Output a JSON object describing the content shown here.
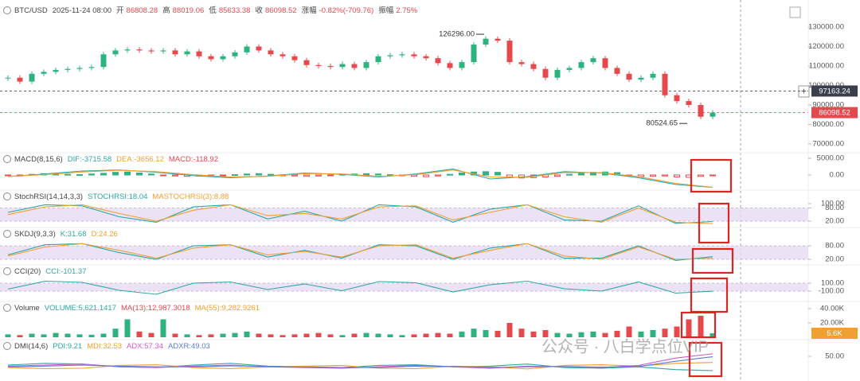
{
  "header": {
    "symbol": "BTC/USD",
    "datetime": "2025-11-24 08:00",
    "items": [
      {
        "label": "开",
        "value": "86808.28"
      },
      {
        "label": "高",
        "value": "88019.06"
      },
      {
        "label": "低",
        "value": "85633.38"
      },
      {
        "label": "收",
        "value": "86098.52"
      },
      {
        "label": "涨幅",
        "value": "-0.82%(-709.76)"
      },
      {
        "label": "振幅",
        "value": "2.75%"
      }
    ]
  },
  "watermark": "公众号 · 八白学点位VIP",
  "chart_data": [
    {
      "type": "candlestick",
      "up_color": "#2db37f",
      "down_color": "#e5484d",
      "ylim": [
        65000,
        140000
      ],
      "yticks": [
        {
          "value": 130000,
          "label": "130000.00"
        },
        {
          "value": 120000,
          "label": "120000.00"
        },
        {
          "value": 110000,
          "label": "110000.00"
        },
        {
          "value": 100000,
          "label": "100000.00"
        },
        {
          "value": 90000,
          "label": "90000.00"
        },
        {
          "value": 80000,
          "label": "80000.00"
        },
        {
          "value": 70000,
          "label": "70000.00"
        }
      ],
      "values": [
        104000,
        102000,
        106000,
        107000,
        108000,
        108500,
        109000,
        109500,
        116000,
        118000,
        118500,
        118000,
        117500,
        118000,
        116000,
        117500,
        115000,
        113500,
        115000,
        117000,
        120000,
        118000,
        116000,
        115000,
        113000,
        110500,
        110000,
        109500,
        111000,
        109000,
        112000,
        115000,
        115500,
        116000,
        115000,
        114000,
        111500,
        109000,
        112000,
        121000,
        124000,
        123000,
        112000,
        111000,
        108500,
        104000,
        108000,
        109000,
        112000,
        114000,
        109000,
        106000,
        103000,
        104000,
        106000,
        95000,
        92000,
        90000,
        84000,
        86098.52
      ],
      "price_lines": [
        {
          "value": 97163.24,
          "color": "#3a3f4b"
        },
        {
          "value": 86098.52,
          "color": "#e5484d"
        }
      ],
      "annotations": [
        {
          "value": 126296,
          "label": "126296.00",
          "index": 40
        },
        {
          "value": 80524.65,
          "index": 57
        }
      ]
    },
    {
      "type": "macd",
      "title": "MACD(8,15,6)",
      "ylim": [
        -4000,
        6000
      ],
      "yticks": [
        {
          "value": 5000,
          "label": "5000.00"
        },
        {
          "value": 0,
          "label": "0.00"
        }
      ],
      "series": [
        {
          "name": "DIF:-3715.58",
          "color": "#2ca6a4",
          "values": [
            -500,
            300,
            1200,
            1500,
            800,
            -200,
            -800,
            -300,
            600,
            200,
            -600,
            300,
            1800,
            -1200,
            -500,
            1000,
            600,
            -800,
            -2800,
            -3715.58
          ]
        },
        {
          "name": "DEA:-3656.12",
          "color": "#f0a030",
          "values": [
            -400,
            100,
            900,
            1400,
            1000,
            100,
            -600,
            -400,
            400,
            300,
            -400,
            100,
            1500,
            -600,
            -700,
            700,
            700,
            -500,
            -2500,
            -3656.12
          ]
        }
      ],
      "histogram": {
        "name": "MACD:-118.92",
        "color": "#e5484d",
        "up_color": "#2db37f",
        "down_color": "#e5484d",
        "values": [
          -200,
          -300,
          200,
          400,
          300,
          200,
          100,
          300,
          500,
          800,
          900,
          600,
          300,
          -100,
          -300,
          -400,
          -300,
          -200,
          -100,
          100,
          300,
          400,
          200,
          -100,
          -300,
          -400,
          -300,
          -100,
          200,
          300,
          400,
          300,
          100,
          -200,
          -400,
          -500,
          -300,
          200,
          600,
          900,
          1000,
          800,
          -600,
          -900,
          -800,
          -600,
          -400,
          200,
          500,
          800,
          900,
          700,
          -200,
          -500,
          -400,
          -300,
          -600,
          -700,
          -400,
          -118.92
        ]
      }
    },
    {
      "type": "line",
      "title": "StochRSI(14,14,3,3)",
      "ylim": [
        -10,
        110
      ],
      "band": [
        20,
        80
      ],
      "yticks": [
        {
          "value": 100,
          "label": "100.00"
        },
        {
          "value": 80,
          "label": "80.00"
        },
        {
          "value": 20,
          "label": "20.00"
        }
      ],
      "series": [
        {
          "name": "STOCHRSI:18.04",
          "color": "#2ca6a4",
          "values": [
            60,
            95,
            90,
            40,
            15,
            85,
            95,
            30,
            65,
            20,
            95,
            85,
            15,
            75,
            95,
            25,
            20,
            90,
            10,
            18.04
          ]
        },
        {
          "name": "MASTOCHRSI(3):8.88",
          "color": "#f0a030",
          "values": [
            50,
            85,
            95,
            55,
            20,
            70,
            95,
            45,
            55,
            30,
            85,
            90,
            25,
            60,
            95,
            40,
            15,
            80,
            15,
            8.88
          ]
        }
      ]
    },
    {
      "type": "line",
      "title": "SKDJ(9,3,3)",
      "ylim": [
        -10,
        110
      ],
      "band": [
        20,
        80
      ],
      "yticks": [
        {
          "value": 80,
          "label": "80.00"
        },
        {
          "value": 20,
          "label": "20.00"
        }
      ],
      "series": [
        {
          "name": "K:31.68",
          "color": "#2ca6a4",
          "values": [
            40,
            85,
            90,
            50,
            20,
            80,
            85,
            30,
            60,
            25,
            85,
            80,
            20,
            70,
            90,
            25,
            25,
            80,
            15,
            31.68
          ]
        },
        {
          "name": "D:24.26",
          "color": "#f0a030",
          "values": [
            35,
            75,
            90,
            60,
            25,
            70,
            85,
            40,
            55,
            30,
            80,
            85,
            25,
            60,
            90,
            35,
            20,
            75,
            20,
            24.26
          ]
        }
      ]
    },
    {
      "type": "line",
      "title": "CCI(20)",
      "ylim": [
        -300,
        300
      ],
      "band": [
        -100,
        100
      ],
      "yticks": [
        {
          "value": 100,
          "label": "100.00"
        },
        {
          "value": -100,
          "label": "-100.00"
        }
      ],
      "series": [
        {
          "name": "CCI:-101.37",
          "color": "#2ca6a4",
          "values": [
            -50,
            150,
            120,
            -80,
            -180,
            100,
            130,
            -60,
            80,
            -90,
            140,
            110,
            -120,
            60,
            150,
            -40,
            -100,
            130,
            -150,
            -101.37
          ]
        }
      ]
    },
    {
      "type": "bar",
      "title": "Volume",
      "ylim": [
        0,
        50000
      ],
      "up_color": "#2db37f",
      "down_color": "#e5484d",
      "yticks": [
        {
          "value": 40000,
          "label": "40.00K"
        },
        {
          "value": 20000,
          "label": "20.00K"
        }
      ],
      "legend": [
        {
          "name": "VOLUME:5,621.1417",
          "color": "#2ca6a4"
        },
        {
          "name": "MA(13):12,987.3018",
          "color": "#e5484d"
        },
        {
          "name": "MA(55):9,282.9261",
          "color": "#f0a030"
        }
      ],
      "last_label": {
        "value": 5621.1417,
        "label": "5.6K"
      },
      "values": [
        4000,
        3000,
        5000,
        4000,
        6000,
        5000,
        4000,
        3500,
        5000,
        12000,
        25000,
        8000,
        6000,
        25000,
        5000,
        4000,
        3000,
        4000,
        5000,
        6000,
        8000,
        5000,
        4000,
        3000,
        4000,
        5000,
        6000,
        4000,
        3000,
        5000,
        6000,
        5000,
        4000,
        3000,
        4000,
        5000,
        6000,
        5000,
        8000,
        12000,
        10000,
        9000,
        20000,
        12000,
        8000,
        10000,
        6000,
        5000,
        7000,
        8000,
        6000,
        9000,
        15000,
        8000,
        10000,
        12000,
        15000,
        25000,
        30000,
        5621.1417
      ]
    },
    {
      "type": "line",
      "title": "DMI(14,6)",
      "ylim": [
        0,
        100
      ],
      "yticks": [
        {
          "value": 50,
          "label": "50.00"
        }
      ],
      "series": [
        {
          "name": "PDI:9.21",
          "color": "#2ca6a4",
          "values": [
            25,
            30,
            28,
            20,
            18,
            25,
            30,
            22,
            20,
            18,
            24,
            26,
            20,
            22,
            28,
            18,
            16,
            20,
            12,
            9.21
          ]
        },
        {
          "name": "MDI:32.53",
          "color": "#f0a030",
          "values": [
            18,
            15,
            16,
            24,
            26,
            18,
            15,
            20,
            22,
            24,
            16,
            15,
            22,
            20,
            14,
            24,
            26,
            22,
            30,
            32.53
          ]
        },
        {
          "name": "ADX:57.34",
          "color": "#d05ad0",
          "values": [
            22,
            25,
            28,
            20,
            18,
            22,
            25,
            20,
            18,
            16,
            20,
            24,
            20,
            16,
            22,
            20,
            18,
            24,
            45,
            57.34
          ]
        },
        {
          "name": "ADXR:49.03",
          "color": "#5b7bd5",
          "values": [
            20,
            22,
            25,
            22,
            20,
            20,
            23,
            21,
            19,
            18,
            18,
            22,
            21,
            18,
            20,
            21,
            19,
            21,
            36,
            49.03
          ]
        }
      ]
    }
  ]
}
